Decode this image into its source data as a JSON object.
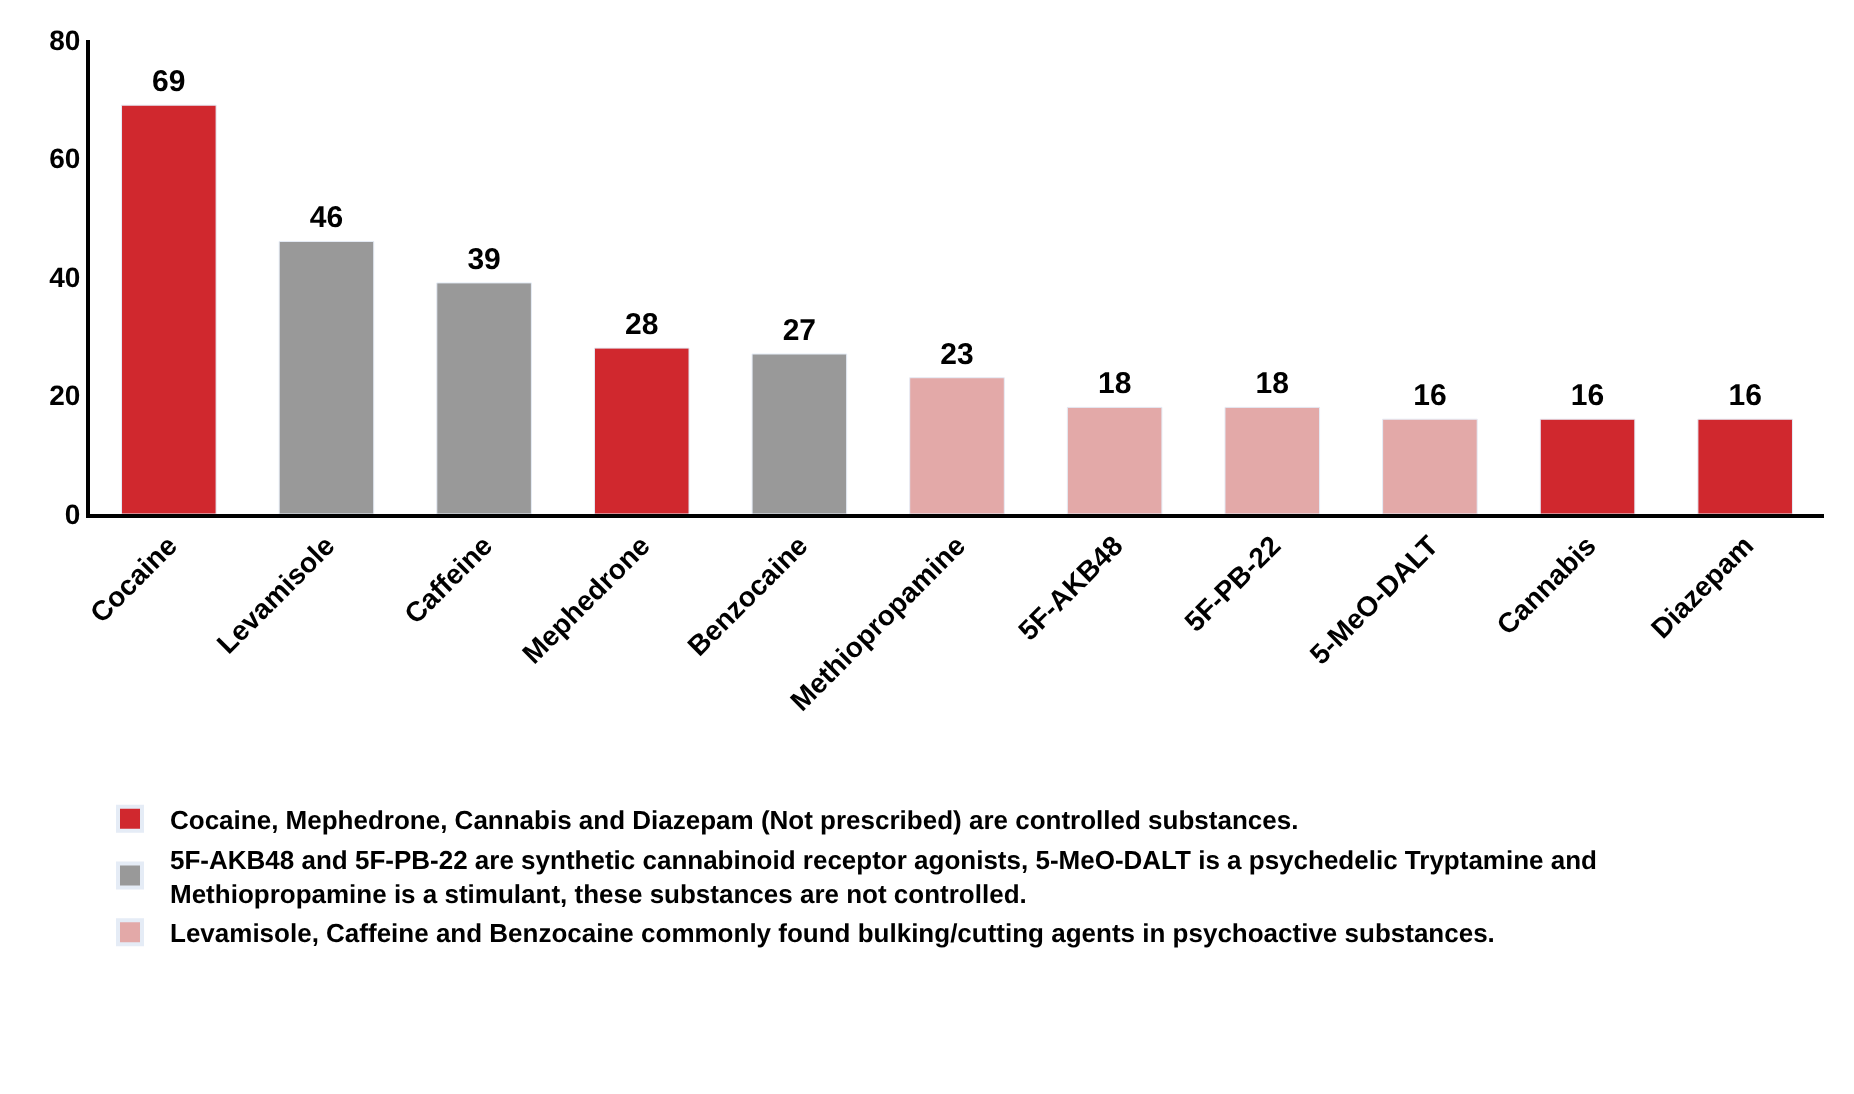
{
  "chart_data": {
    "type": "bar",
    "categories": [
      "Cocaine",
      "Levamisole",
      "Caffeine",
      "Mephedrone",
      "Benzocaine",
      "Methiopropamine",
      "5F-AKB48",
      "5F-PB-22",
      "5-MeO-DALT",
      "Cannabis",
      "Diazepam"
    ],
    "series": [
      {
        "name": "Cocaine, Mephedrone, Cannabis and Diazepam (Not prescribed) are controlled substances.",
        "color": "#d0282e",
        "values": [
          69,
          null,
          null,
          28,
          null,
          null,
          null,
          null,
          null,
          16,
          16
        ]
      },
      {
        "name": "5F-AKB48 and 5F-PB-22 are synthetic cannabinoid receptor agonists, 5-MeO-DALT is a psychedelic Tryptamine and Methiopropamine is a stimulant, these substances are not controlled.",
        "color": "#999999",
        "values": [
          null,
          46,
          39,
          null,
          27,
          null,
          null,
          null,
          null,
          null,
          null
        ]
      },
      {
        "name": "Levamisole, Caffeine and Benzocaine commonly found bulking/cutting agents in psychoactive substances.",
        "color": "#e3a9a8",
        "values": [
          null,
          null,
          null,
          null,
          null,
          23,
          18,
          18,
          16,
          null,
          null
        ]
      }
    ],
    "ylim": [
      0,
      80
    ],
    "yticks": [
      0,
      20,
      40,
      60,
      80
    ],
    "data_labels": true,
    "legend": "bottom"
  }
}
